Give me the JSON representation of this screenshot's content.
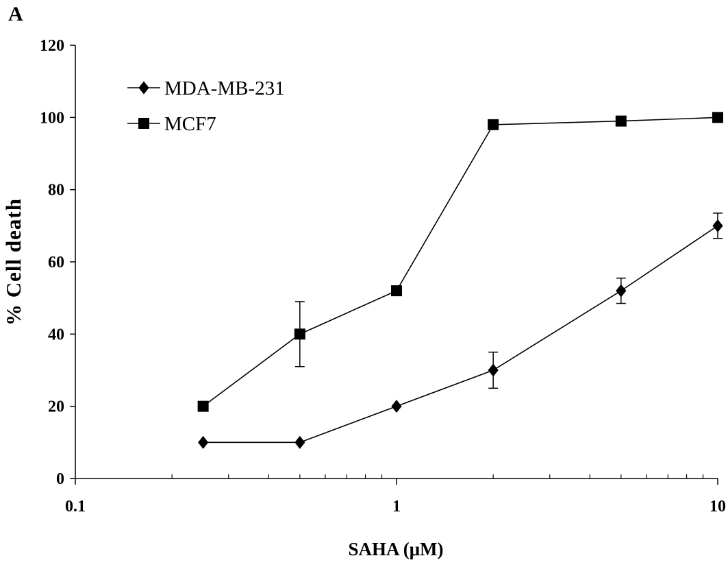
{
  "panel_label": "A",
  "colors": {
    "ink": "#000000",
    "background": "#ffffff"
  },
  "chart_data": {
    "type": "line",
    "title": "",
    "xlabel": "SAHA (μM)",
    "ylabel": "% Cell death",
    "xscale": "log",
    "xlim": [
      0.1,
      10
    ],
    "ylim": [
      0,
      120
    ],
    "x_ticks": [
      0.1,
      1,
      10
    ],
    "x_tick_labels": [
      "0.1",
      "1",
      "10"
    ],
    "y_ticks": [
      0,
      20,
      40,
      60,
      80,
      100,
      120
    ],
    "y_tick_labels": [
      "0",
      "20",
      "40",
      "60",
      "80",
      "100",
      "120"
    ],
    "grid": false,
    "legend_position": "top-left",
    "series": [
      {
        "name": "MDA-MB-231",
        "marker": "diamond",
        "x": [
          0.25,
          0.5,
          1,
          2,
          5,
          10
        ],
        "y": [
          10,
          10,
          20,
          30,
          52,
          70
        ],
        "error": [
          0,
          0,
          0,
          5,
          3.5,
          3.5
        ]
      },
      {
        "name": "MCF7",
        "marker": "square",
        "x": [
          0.25,
          0.5,
          1,
          2,
          5,
          10
        ],
        "y": [
          20,
          40,
          52,
          98,
          99,
          100
        ],
        "error": [
          0,
          9,
          0,
          0,
          0,
          0
        ]
      }
    ]
  }
}
